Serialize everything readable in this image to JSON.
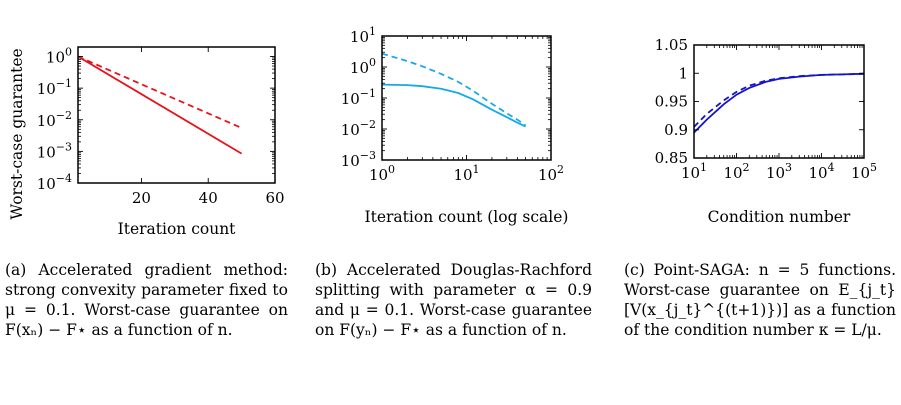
{
  "figure": {
    "shared_ylabel": "Worst-case guarantee"
  },
  "chart_data": [
    {
      "type": "line",
      "id": "a",
      "xlabel": "Iteration count",
      "ylabel": "Worst-case guarantee",
      "xscale": "linear",
      "yscale": "log",
      "xlim": [
        1,
        60
      ],
      "ylim": [
        0.0001,
        2
      ],
      "xticks": [
        20,
        40,
        60
      ],
      "yticks": [
        {
          "v": 1,
          "b": "10",
          "e": "0"
        },
        {
          "v": 0.1,
          "b": "10",
          "e": "−1"
        },
        {
          "v": 0.01,
          "b": "10",
          "e": "−2"
        },
        {
          "v": 0.001,
          "b": "10",
          "e": "−3"
        },
        {
          "v": 0.0001,
          "b": "10",
          "e": "−4"
        }
      ],
      "grid": false,
      "series": [
        {
          "style": "solid",
          "color": "#e8121b",
          "x": [
            1,
            50
          ],
          "y": [
            1.0,
            0.00085
          ]
        },
        {
          "style": "dashed",
          "color": "#e8121b",
          "x": [
            1,
            50
          ],
          "y": [
            1.0,
            0.0055
          ]
        }
      ]
    },
    {
      "type": "line",
      "id": "b",
      "xlabel": "Iteration count (log scale)",
      "xscale": "log",
      "yscale": "log",
      "xlim": [
        1,
        100
      ],
      "ylim": [
        0.001,
        10
      ],
      "xticks": [
        {
          "v": 1,
          "b": "10",
          "e": "0"
        },
        {
          "v": 10,
          "b": "10",
          "e": "1"
        },
        {
          "v": 100,
          "b": "10",
          "e": "2"
        }
      ],
      "yticks": [
        {
          "v": 10,
          "b": "10",
          "e": "1"
        },
        {
          "v": 1,
          "b": "10",
          "e": "0"
        },
        {
          "v": 0.1,
          "b": "10",
          "e": "−1"
        },
        {
          "v": 0.01,
          "b": "10",
          "e": "−2"
        },
        {
          "v": 0.001,
          "b": "10",
          "e": "−3"
        }
      ],
      "grid": false,
      "series": [
        {
          "style": "solid",
          "color": "#16a9e8",
          "x": [
            1,
            2,
            3,
            5,
            8,
            12,
            20,
            30,
            40,
            50
          ],
          "y": [
            0.27,
            0.26,
            0.24,
            0.2,
            0.145,
            0.09,
            0.042,
            0.024,
            0.016,
            0.012
          ]
        },
        {
          "style": "dashed",
          "color": "#16a9e8",
          "x": [
            1,
            2,
            3,
            5,
            8,
            12,
            20,
            30,
            40,
            50
          ],
          "y": [
            2.7,
            1.55,
            1.05,
            0.6,
            0.33,
            0.17,
            0.065,
            0.032,
            0.02,
            0.013
          ]
        }
      ]
    },
    {
      "type": "line",
      "id": "c",
      "xlabel": "Condition number",
      "xscale": "log",
      "yscale": "linear",
      "xlim": [
        10,
        100000
      ],
      "ylim": [
        0.85,
        1.05
      ],
      "xticks": [
        {
          "v": 10,
          "b": "10",
          "e": "1"
        },
        {
          "v": 100,
          "b": "10",
          "e": "2"
        },
        {
          "v": 1000,
          "b": "10",
          "e": "3"
        },
        {
          "v": 10000,
          "b": "10",
          "e": "4"
        },
        {
          "v": 100000,
          "b": "10",
          "e": "5"
        }
      ],
      "yticks": [
        {
          "v": 1.05,
          "t": "1.05"
        },
        {
          "v": 1,
          "t": "1"
        },
        {
          "v": 0.95,
          "t": "0.95"
        },
        {
          "v": 0.9,
          "t": "0.9"
        },
        {
          "v": 0.85,
          "t": "0.85"
        }
      ],
      "grid": false,
      "series": [
        {
          "style": "solid",
          "color": "#1414c8",
          "x": [
            10,
            20,
            50,
            100,
            200,
            500,
            1000,
            3000,
            10000,
            30000,
            100000
          ],
          "y": [
            0.895,
            0.918,
            0.945,
            0.962,
            0.974,
            0.985,
            0.99,
            0.994,
            0.997,
            0.998,
            0.999
          ]
        },
        {
          "style": "dashed",
          "color": "#1414c8",
          "x": [
            10,
            20,
            50,
            100,
            200,
            500,
            1000,
            3000,
            10000,
            30000,
            100000
          ],
          "y": [
            0.905,
            0.928,
            0.952,
            0.967,
            0.978,
            0.987,
            0.991,
            0.995,
            0.997,
            0.998,
            0.999
          ]
        }
      ]
    }
  ],
  "captions": [
    "(a) Accelerated gradient method: strong convexity parameter fixed to μ = 0.1. Worst-case guarantee on F(xₙ) − F⋆ as a function of n.",
    "(b) Accelerated Douglas-Rachford splitting with parameter α = 0.9 and μ = 0.1. Worst-case guarantee on F(yₙ) − F⋆ as a function of n.",
    "(c) Point-SAGA: n = 5 functions. Worst-case guarantee on E_{j_t}[V(x_{j_t}^{(t+1)})] as a function of the condition number κ = L/μ."
  ]
}
